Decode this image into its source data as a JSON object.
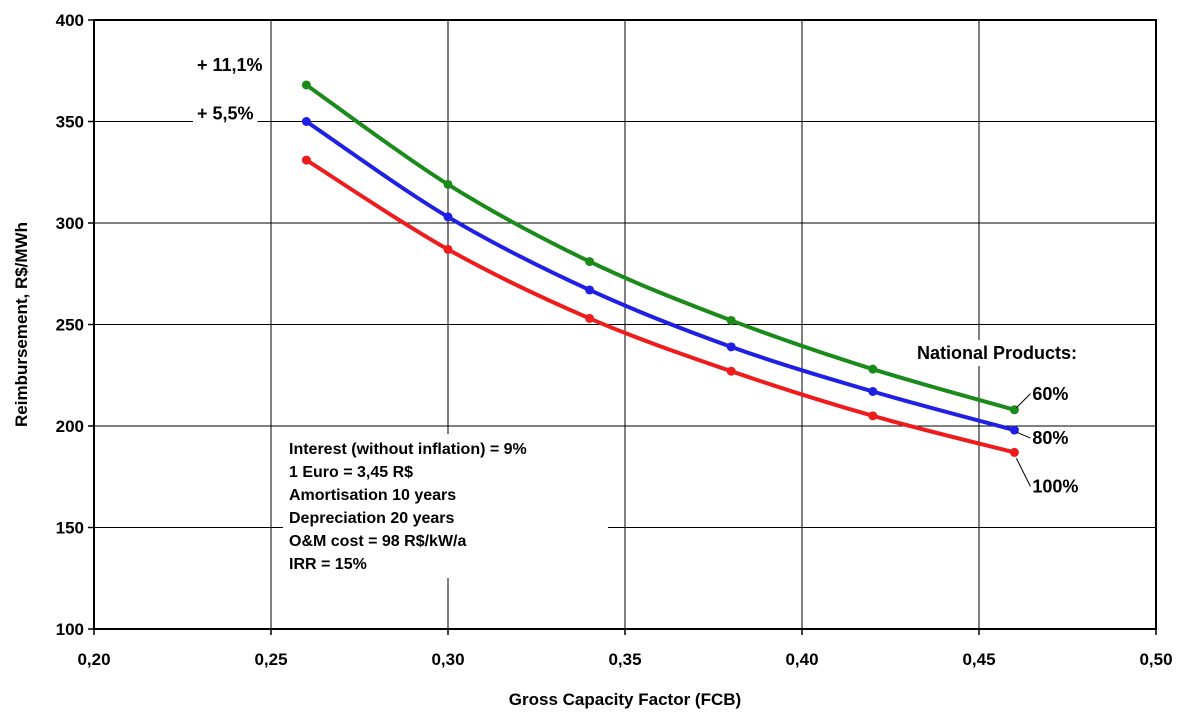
{
  "chart_data": {
    "type": "line",
    "xlabel": "Gross Capacity Factor (FCB)",
    "ylabel": "Reimbursement, R$/MWh",
    "xlim": [
      0.2,
      0.5
    ],
    "ylim": [
      100,
      400
    ],
    "x_ticks": [
      "0,20",
      "0,25",
      "0,30",
      "0,35",
      "0,40",
      "0,45",
      "0,50"
    ],
    "y_ticks": [
      "100",
      "150",
      "200",
      "250",
      "300",
      "350",
      "400"
    ],
    "grid": true,
    "x": [
      0.26,
      0.3,
      0.34,
      0.38,
      0.42,
      0.46
    ],
    "series": [
      {
        "name": "60%",
        "color": "#1a8a1a",
        "values": [
          368,
          319,
          281,
          252,
          228,
          208
        ]
      },
      {
        "name": "80%",
        "color": "#1f1fe6",
        "values": [
          350,
          303,
          267,
          239,
          217,
          198
        ]
      },
      {
        "name": "100%",
        "color": "#ee1c1c",
        "values": [
          331,
          287,
          253,
          227,
          205,
          187
        ]
      }
    ],
    "legend_title": "National Products:",
    "increase_labels": [
      "+ 11,1%",
      "+ 5,5%"
    ],
    "notes": [
      "Interest (without inflation) = 9%",
      "1 Euro = 3,45 R$",
      "Amortisation 10 years",
      "Depreciation 20 years",
      "O&M cost = 98 R$/kW/a",
      "IRR = 15%"
    ]
  }
}
